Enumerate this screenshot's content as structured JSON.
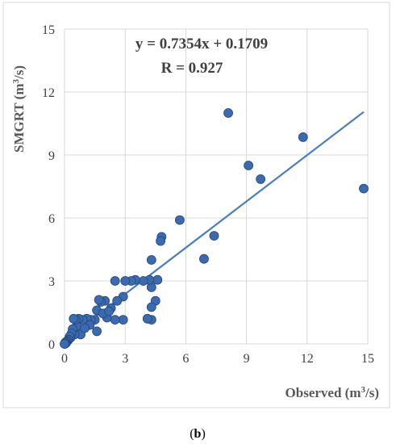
{
  "chart_data": {
    "type": "scatter",
    "xlabel_prefix": "Observed (m",
    "xlabel_sup": "3",
    "xlabel_suffix": "/s)",
    "ylabel_prefix": "SMGRT (m",
    "ylabel_sup": "3",
    "ylabel_suffix": "/s)",
    "xlim": [
      0,
      15
    ],
    "ylim": [
      0,
      15
    ],
    "xticks": [
      "0",
      "3",
      "6",
      "9",
      "12",
      "15"
    ],
    "yticks": [
      "0",
      "3",
      "6",
      "9",
      "12",
      "15"
    ],
    "xtick_values": [
      0,
      3,
      6,
      9,
      12,
      15
    ],
    "ytick_values": [
      0,
      3,
      6,
      9,
      12,
      15
    ],
    "grid": true,
    "annotation": {
      "equation": "y = 0.7354x + 0.1709",
      "r_value": "R = 0.927"
    },
    "trendline": {
      "slope": 0.7354,
      "intercept": 0.1709,
      "x_range": [
        0,
        14.8
      ]
    },
    "marker_color": "#3b6aae",
    "trend_color": "#4a7ebb",
    "points": [
      {
        "x": 14.8,
        "y": 7.4
      },
      {
        "x": 11.8,
        "y": 9.85
      },
      {
        "x": 9.7,
        "y": 7.85
      },
      {
        "x": 9.1,
        "y": 8.5
      },
      {
        "x": 8.1,
        "y": 11.0
      },
      {
        "x": 7.4,
        "y": 5.15
      },
      {
        "x": 6.9,
        "y": 4.05
      },
      {
        "x": 5.7,
        "y": 5.9
      },
      {
        "x": 4.8,
        "y": 5.1
      },
      {
        "x": 4.75,
        "y": 4.9
      },
      {
        "x": 4.3,
        "y": 4.0
      },
      {
        "x": 4.6,
        "y": 3.05
      },
      {
        "x": 4.5,
        "y": 2.05
      },
      {
        "x": 4.3,
        "y": 1.75
      },
      {
        "x": 4.3,
        "y": 1.15
      },
      {
        "x": 4.1,
        "y": 1.2
      },
      {
        "x": 4.3,
        "y": 2.7
      },
      {
        "x": 4.2,
        "y": 3.05
      },
      {
        "x": 3.9,
        "y": 3.0
      },
      {
        "x": 3.5,
        "y": 3.05
      },
      {
        "x": 3.3,
        "y": 3.0
      },
      {
        "x": 3.0,
        "y": 3.0
      },
      {
        "x": 2.9,
        "y": 1.15
      },
      {
        "x": 2.9,
        "y": 2.25
      },
      {
        "x": 2.5,
        "y": 3.0
      },
      {
        "x": 2.6,
        "y": 2.05
      },
      {
        "x": 2.5,
        "y": 1.15
      },
      {
        "x": 2.3,
        "y": 1.7
      },
      {
        "x": 2.1,
        "y": 1.25
      },
      {
        "x": 2.0,
        "y": 2.05
      },
      {
        "x": 1.8,
        "y": 2.0
      },
      {
        "x": 1.7,
        "y": 2.1
      },
      {
        "x": 1.6,
        "y": 1.6
      },
      {
        "x": 1.6,
        "y": 0.6
      },
      {
        "x": 1.5,
        "y": 1.15
      },
      {
        "x": 1.3,
        "y": 1.15
      },
      {
        "x": 1.1,
        "y": 1.2
      },
      {
        "x": 0.9,
        "y": 1.15
      },
      {
        "x": 0.8,
        "y": 0.45
      },
      {
        "x": 0.7,
        "y": 1.2
      },
      {
        "x": 0.6,
        "y": 0.85
      },
      {
        "x": 0.55,
        "y": 1.15
      },
      {
        "x": 0.5,
        "y": 0.45
      },
      {
        "x": 0.45,
        "y": 1.2
      },
      {
        "x": 0.4,
        "y": 0.7
      },
      {
        "x": 0.35,
        "y": 0.5
      },
      {
        "x": 0.3,
        "y": 0.3
      },
      {
        "x": 0.25,
        "y": 0.35
      },
      {
        "x": 0.2,
        "y": 0.2
      },
      {
        "x": 0.15,
        "y": 0.15
      },
      {
        "x": 0.1,
        "y": 0.1
      },
      {
        "x": 0.08,
        "y": 0.05
      },
      {
        "x": 0.05,
        "y": 0.08
      },
      {
        "x": 0.03,
        "y": 0.02
      },
      {
        "x": 0.02,
        "y": 0.0
      },
      {
        "x": 0.0,
        "y": 0.0
      },
      {
        "x": 1.9,
        "y": 1.45
      },
      {
        "x": 2.2,
        "y": 1.55
      },
      {
        "x": 1.25,
        "y": 0.9
      },
      {
        "x": 1.0,
        "y": 0.75
      }
    ]
  },
  "caption": {
    "open": "(",
    "letter": "b",
    "close": ")"
  }
}
